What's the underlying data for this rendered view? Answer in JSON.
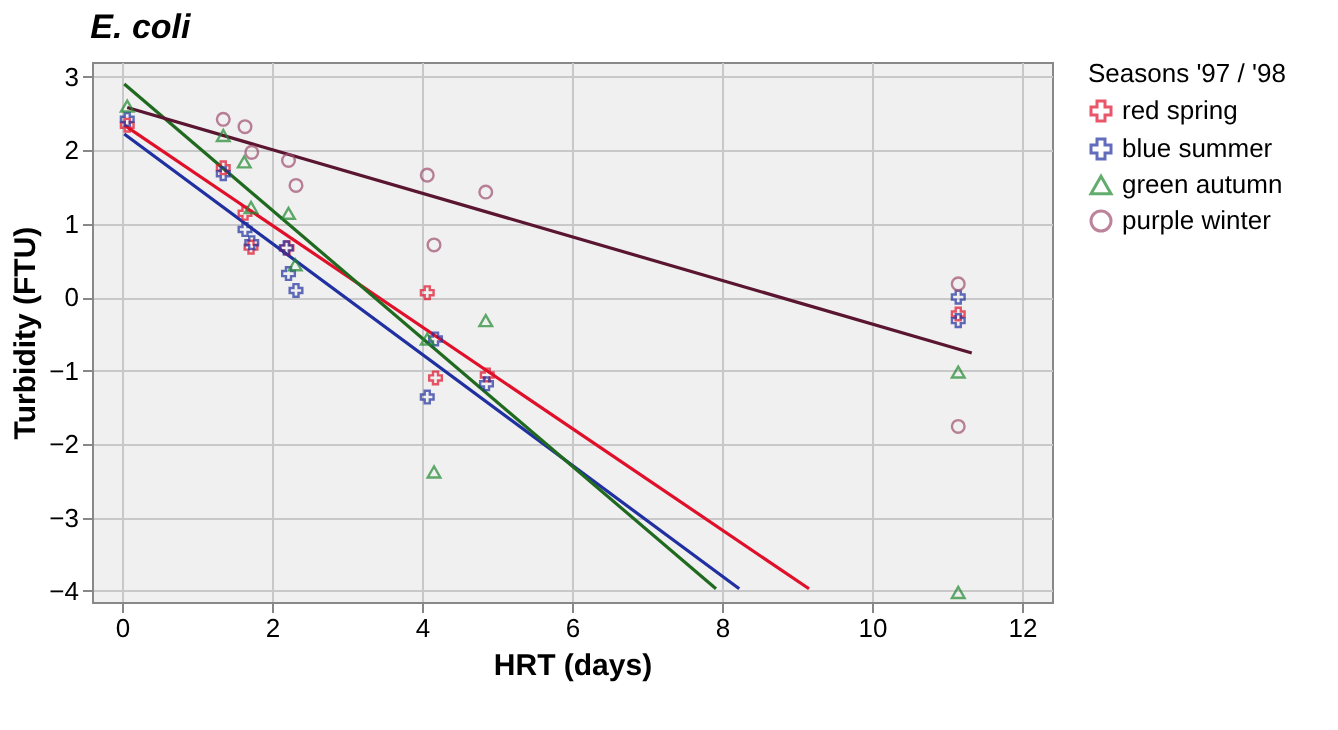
{
  "chart_data": {
    "type": "scatter",
    "title": "E. coli",
    "xlabel": "HRT (days)",
    "ylabel": "Turbidity (FTU)",
    "legend_title": "Seasons '97 / '98",
    "xlim": [
      -0.4,
      12.4
    ],
    "ylim": [
      -4.15,
      3.2
    ],
    "xticks": [
      0,
      2,
      4,
      6,
      8,
      10,
      12
    ],
    "yticks": [
      -4,
      -3,
      -2,
      -1,
      0,
      1,
      2,
      3
    ],
    "grid": true,
    "legend": "right",
    "series": [
      {
        "name": "red spring",
        "color": "#e0102a",
        "marker": "cross",
        "x": [
          0.07,
          1.35,
          1.64,
          1.72,
          2.2,
          4.07,
          4.18,
          4.87,
          11.15
        ],
        "values": [
          2.34,
          1.76,
          1.14,
          0.68,
          0.67,
          0.06,
          -1.1,
          -1.06,
          -0.23
        ]
      },
      {
        "name": "blue summer",
        "color": "#2030a0",
        "marker": "cross",
        "x": [
          0.07,
          1.35,
          1.64,
          1.73,
          2.19,
          2.22,
          2.32,
          4.18,
          4.07,
          4.86,
          11.15,
          11.15
        ],
        "values": [
          2.42,
          1.68,
          0.92,
          0.74,
          0.67,
          0.32,
          0.09,
          -0.57,
          -1.36,
          -1.18,
          0.0,
          -0.32
        ]
      },
      {
        "name": "green autumn",
        "color": "#208a30",
        "marker": "triangle",
        "x": [
          0.07,
          1.35,
          1.63,
          1.72,
          2.22,
          2.31,
          4.85,
          4.16,
          4.07,
          11.15,
          11.15
        ],
        "values": [
          2.6,
          2.2,
          1.84,
          1.22,
          1.14,
          0.44,
          -0.32,
          -2.38,
          -0.57,
          -1.02,
          -4.02
        ]
      },
      {
        "name": "purple winter",
        "color": "#a05070",
        "marker": "circle",
        "x": [
          1.35,
          1.64,
          1.73,
          2.22,
          2.32,
          4.07,
          4.85,
          4.16,
          11.15,
          11.15
        ],
        "values": [
          2.42,
          2.32,
          1.97,
          1.86,
          1.52,
          1.66,
          1.43,
          0.71,
          0.18,
          -1.76
        ]
      },
      {
        "type": "line",
        "color": "#e0102a",
        "x": [
          0.03,
          9.16
        ],
        "values": [
          2.34,
          -3.97
        ]
      },
      {
        "type": "line",
        "color": "#2030a0",
        "x": [
          0.03,
          8.23
        ],
        "values": [
          2.22,
          -3.97
        ]
      },
      {
        "type": "line",
        "color": "#206a20",
        "x": [
          0.03,
          7.92
        ],
        "values": [
          2.9,
          -3.97
        ]
      },
      {
        "type": "line",
        "color": "#5a1530",
        "x": [
          0.07,
          11.33
        ],
        "values": [
          2.58,
          -0.76
        ]
      }
    ]
  }
}
